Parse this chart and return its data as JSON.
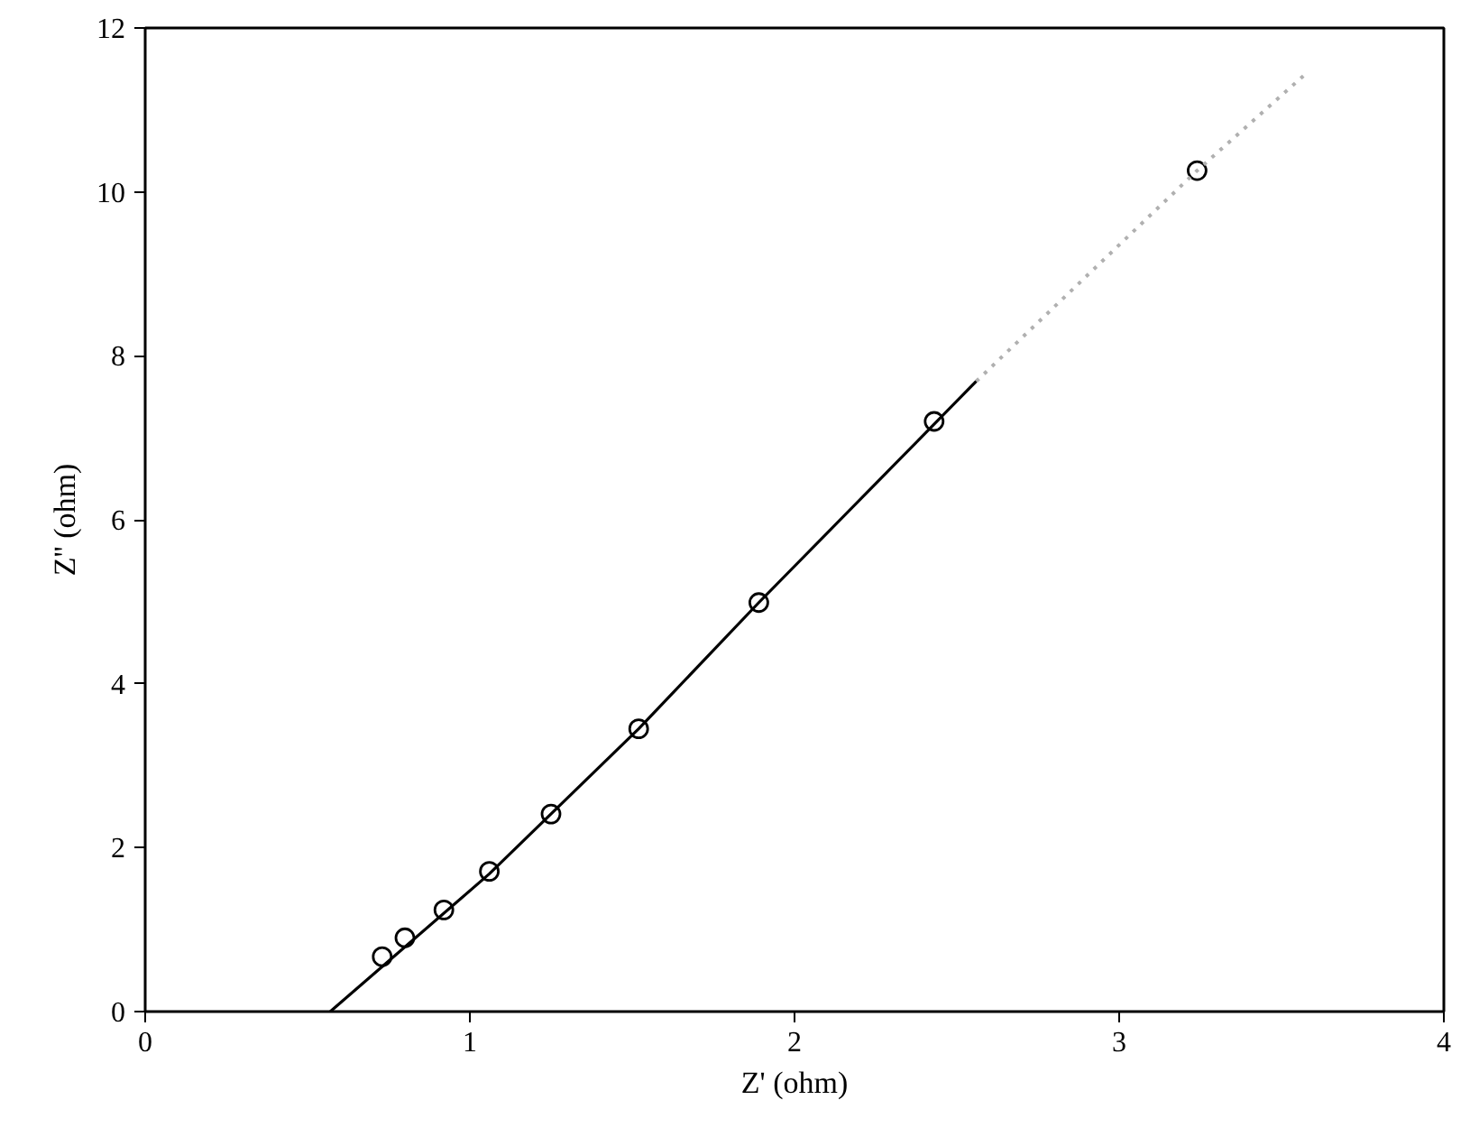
{
  "chart_data": {
    "type": "scatter",
    "xlabel": "Z' (ohm)",
    "ylabel": "Z'' (ohm)",
    "xlim": [
      0,
      4
    ],
    "ylim": [
      0,
      12
    ],
    "xticks": [
      0,
      1,
      2,
      3,
      4
    ],
    "yticks": [
      0,
      2,
      4,
      6,
      8,
      10,
      12
    ],
    "grid": false,
    "series": [
      {
        "marker": "circle",
        "color": "#000000",
        "x": [
          0.73,
          0.8,
          0.92,
          1.06,
          1.25,
          1.52,
          1.89,
          2.43,
          3.24
        ],
        "values": [
          0.67,
          0.9,
          1.24,
          1.71,
          2.41,
          3.45,
          4.99,
          7.2,
          10.26
        ]
      },
      {
        "type": "line",
        "line_style": "solid",
        "color": "#000000",
        "x": [
          0.57,
          1.06,
          1.52,
          1.89,
          2.56
        ],
        "values": [
          0,
          1.68,
          3.45,
          4.99,
          7.69
        ]
      },
      {
        "type": "line",
        "line_style": "dotted",
        "color": "#b0b0b0",
        "x": [
          2.56,
          3.24,
          3.58
        ],
        "values": [
          7.69,
          10.26,
          11.46
        ]
      }
    ]
  }
}
